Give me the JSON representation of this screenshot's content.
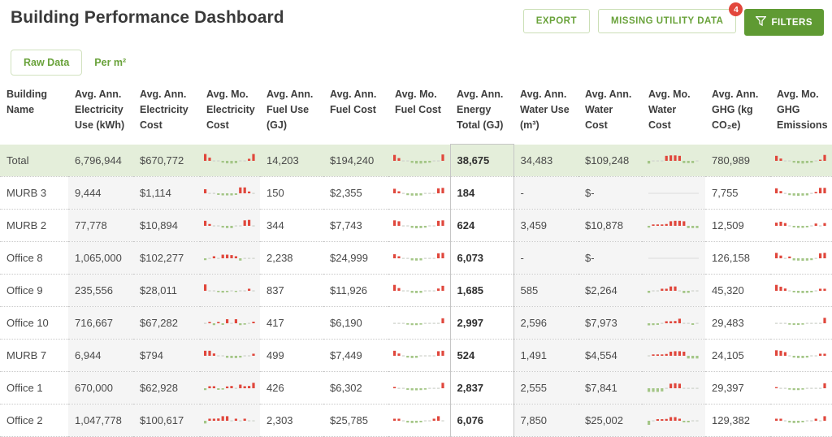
{
  "page": {
    "title": "Building Performance Dashboard"
  },
  "toolbar": {
    "export_label": "EXPORT",
    "missing_label": "MISSING UTILITY DATA",
    "missing_badge": "4",
    "filters_label": "FILTERS"
  },
  "tabs": [
    {
      "label": "Raw Data",
      "active": true
    },
    {
      "label": "Per m²",
      "active": false
    }
  ],
  "colors": {
    "accent_green": "#69a23a",
    "button_solid_green": "#5f9a33",
    "badge_red": "#e2473c",
    "spark_red": "#e0473c",
    "spark_green": "#a4c687",
    "spark_dash": "#d2d6cf",
    "spark_flat_line": "#dcdcdc",
    "total_row_bg": "#e4eeda",
    "column_stripe": "#f5f5f5"
  },
  "table": {
    "columns": [
      {
        "key": "name",
        "label": "Building Name",
        "type": "text",
        "group": "none"
      },
      {
        "key": "elec_use",
        "label": "Avg. Ann. Electricity Use (kWh)",
        "type": "text",
        "group": "elec"
      },
      {
        "key": "elec_cost",
        "label": "Avg. Ann. Electricity Cost",
        "type": "text",
        "group": "elec"
      },
      {
        "key": "elec_spark",
        "label": "Avg. Mo. Electricity Cost",
        "type": "spark",
        "group": "elec"
      },
      {
        "key": "fuel_use",
        "label": "Avg. Ann. Fuel Use (GJ)",
        "type": "text",
        "group": "none"
      },
      {
        "key": "fuel_cost",
        "label": "Avg. Ann. Fuel Cost",
        "type": "text",
        "group": "none"
      },
      {
        "key": "fuel_spark",
        "label": "Avg. Mo. Fuel Cost",
        "type": "spark",
        "group": "none"
      },
      {
        "key": "energy_total",
        "label": "Avg. Ann. Energy Total (GJ)",
        "type": "text",
        "group": "energy"
      },
      {
        "key": "water_use",
        "label": "Avg. Ann. Water Use (m³)",
        "type": "text",
        "group": "water"
      },
      {
        "key": "water_cost",
        "label": "Avg. Ann. Water Cost",
        "type": "text",
        "group": "water"
      },
      {
        "key": "water_spark",
        "label": "Avg. Mo. Water Cost",
        "type": "spark",
        "group": "water"
      },
      {
        "key": "ghg",
        "label": "Avg. Ann. GHG (kg CO₂e)",
        "type": "text",
        "group": "none"
      },
      {
        "key": "ghg_spark",
        "label": "Avg. Mo. GHG Emissions",
        "type": "spark",
        "group": "none"
      }
    ],
    "rows": [
      {
        "name": "Total",
        "total": true,
        "elec_use": "6,796,944",
        "elec_cost": "$670,772",
        "elec_spark": [
          3,
          1.4,
          0.15,
          0.15,
          -0.8,
          -1.1,
          -1.2,
          -1.0,
          0.15,
          0.15,
          0.9,
          3
        ],
        "fuel_use": "14,203",
        "fuel_cost": "$194,240",
        "fuel_spark": [
          2.6,
          1.2,
          0.15,
          0.15,
          -0.9,
          -1.2,
          -1.2,
          -1.0,
          -0.8,
          0.15,
          0.15,
          2.8
        ],
        "energy_total": "38,675",
        "water_use": "34,483",
        "water_cost": "$109,248",
        "water_spark": [
          -1.2,
          0.15,
          0.15,
          0.15,
          2.2,
          2.4,
          2.4,
          2.2,
          -1.0,
          -1.0,
          -1.0,
          0.15
        ],
        "ghg": "780,989",
        "ghg_spark": [
          2.2,
          1.0,
          0.15,
          0.15,
          -0.8,
          -1.1,
          -1.2,
          -1.0,
          -0.8,
          0.15,
          0.5,
          2.6
        ]
      },
      {
        "name": "MURB 3",
        "total": false,
        "elec_use": "9,444",
        "elec_cost": "$1,114",
        "elec_spark": [
          1.8,
          0.15,
          0.15,
          -0.7,
          -0.9,
          -0.9,
          -0.9,
          -0.7,
          2.6,
          2.6,
          0.8,
          0.15
        ],
        "fuel_use": "150",
        "fuel_cost": "$2,355",
        "fuel_spark": [
          2.0,
          0.9,
          0.15,
          -0.8,
          -1.0,
          -1.0,
          -0.9,
          0.15,
          0.15,
          0.15,
          2.2,
          2.4
        ],
        "energy_total": "184",
        "water_use": "-",
        "water_cost": "$-",
        "water_spark": "flat",
        "ghg": "7,755",
        "ghg_spark": [
          2.2,
          1.0,
          0.15,
          -0.8,
          -1.0,
          -1.1,
          -1.0,
          -0.9,
          0.15,
          0.6,
          2.4,
          2.4
        ]
      },
      {
        "name": "MURB 2",
        "total": false,
        "elec_use": "77,778",
        "elec_cost": "$10,894",
        "elec_spark": [
          2.2,
          0.8,
          0.15,
          0.15,
          -0.8,
          -1.0,
          -1.0,
          0.15,
          0.15,
          2.4,
          2.6,
          0.15
        ],
        "fuel_use": "344",
        "fuel_cost": "$7,743",
        "fuel_spark": [
          2.4,
          2.0,
          0.15,
          0.15,
          -0.9,
          -1.1,
          -1.0,
          -0.8,
          0.15,
          0.15,
          2.2,
          2.4
        ],
        "energy_total": "624",
        "water_use": "3,459",
        "water_cost": "$10,878",
        "water_spark": [
          -0.8,
          0.6,
          0.6,
          0.6,
          0.8,
          2.0,
          2.2,
          2.2,
          2.0,
          -1.0,
          -1.0,
          -1.0
        ],
        "ghg": "12,509",
        "ghg_spark": [
          1.4,
          1.8,
          1.2,
          0.15,
          -0.7,
          -0.9,
          -0.9,
          -0.7,
          0.15,
          1.0,
          0.15,
          1.2
        ]
      },
      {
        "name": "Office 8",
        "total": false,
        "elec_use": "1,065,000",
        "elec_cost": "$102,277",
        "elec_spark": [
          -0.8,
          0.15,
          0.9,
          0.15,
          1.6,
          1.6,
          1.4,
          0.9,
          -1.0,
          0.15,
          0.15,
          0.15
        ],
        "fuel_use": "2,238",
        "fuel_cost": "$24,999",
        "fuel_spark": [
          1.8,
          0.9,
          0.15,
          0.15,
          -0.9,
          -1.0,
          -0.9,
          0.15,
          0.15,
          0.15,
          2.2,
          2.4
        ],
        "energy_total": "6,073",
        "water_use": "-",
        "water_cost": "$-",
        "water_spark": "flat",
        "ghg": "126,158",
        "ghg_spark": [
          2.4,
          1.2,
          0.15,
          0.8,
          -0.9,
          -1.0,
          -1.1,
          -1.0,
          -0.8,
          0.15,
          2.2,
          2.4
        ]
      },
      {
        "name": "Office 9",
        "total": false,
        "elec_use": "235,556",
        "elec_cost": "$28,011",
        "elec_spark": [
          2.8,
          0.15,
          0.15,
          -0.6,
          -0.8,
          -0.6,
          0.15,
          -0.5,
          0.15,
          0.15,
          0.9,
          0.15
        ],
        "fuel_use": "837",
        "fuel_cost": "$11,926",
        "fuel_spark": [
          2.6,
          1.2,
          0.15,
          0.15,
          -0.9,
          -1.0,
          -0.9,
          0.15,
          0.15,
          0.15,
          1.0,
          2.2
        ],
        "energy_total": "1,685",
        "water_use": "585",
        "water_cost": "$2,264",
        "water_spark": [
          -0.9,
          0.15,
          0.15,
          0.9,
          0.9,
          1.9,
          1.9,
          0.15,
          -1.0,
          -0.9,
          0.15,
          0.15
        ],
        "ghg": "45,320",
        "ghg_spark": [
          2.6,
          1.8,
          1.0,
          0.15,
          -0.7,
          -0.9,
          -1.0,
          -0.9,
          -0.7,
          0.15,
          0.9,
          0.9
        ]
      },
      {
        "name": "Office 10",
        "total": false,
        "elec_use": "716,667",
        "elec_cost": "$67,282",
        "elec_spark": [
          0.15,
          0.6,
          -0.8,
          0.6,
          -0.7,
          1.8,
          0.15,
          1.8,
          -0.8,
          -0.6,
          0.15,
          0.7
        ],
        "fuel_use": "417",
        "fuel_cost": "$6,190",
        "fuel_spark": [
          0.15,
          0.15,
          0.15,
          -0.6,
          -0.8,
          -0.8,
          -0.6,
          0.15,
          0.15,
          0.15,
          0.15,
          2.2
        ],
        "energy_total": "2,997",
        "water_use": "2,596",
        "water_cost": "$7,973",
        "water_spark": [
          -0.9,
          -0.8,
          -0.7,
          0.15,
          0.9,
          0.9,
          1.0,
          2.0,
          0.15,
          0.15,
          -0.7,
          0.15
        ],
        "ghg": "29,483",
        "ghg_spark": [
          0.15,
          0.15,
          0.15,
          -0.6,
          -0.7,
          -0.7,
          -0.6,
          0.15,
          0.15,
          0.15,
          0.15,
          2.4
        ]
      },
      {
        "name": "MURB 7",
        "total": false,
        "elec_use": "6,944",
        "elec_cost": "$794",
        "elec_spark": [
          2.2,
          2.2,
          1.0,
          0.15,
          0.15,
          -0.9,
          -1.0,
          -1.0,
          -0.8,
          0.15,
          0.15,
          0.9
        ],
        "fuel_use": "499",
        "fuel_cost": "$7,449",
        "fuel_spark": [
          2.2,
          1.0,
          0.15,
          -0.8,
          -1.0,
          -0.9,
          0.15,
          0.15,
          0.15,
          0.15,
          2.0,
          2.2
        ],
        "energy_total": "524",
        "water_use": "1,491",
        "water_cost": "$4,554",
        "water_spark": [
          0.15,
          0.6,
          0.6,
          0.6,
          0.8,
          1.8,
          2.0,
          2.0,
          1.8,
          -1.2,
          -1.2,
          -1.2
        ],
        "ghg": "24,105",
        "ghg_spark": [
          2.4,
          2.2,
          1.6,
          0.15,
          -0.8,
          -1.0,
          -1.0,
          -0.8,
          0.15,
          0.15,
          0.9,
          0.9
        ]
      },
      {
        "name": "Office 1",
        "total": false,
        "elec_use": "670,000",
        "elec_cost": "$62,928",
        "elec_spark": [
          -0.8,
          0.9,
          0.9,
          -0.7,
          -0.6,
          0.8,
          1.0,
          0.15,
          1.6,
          0.9,
          1.0,
          2.4
        ],
        "fuel_use": "426",
        "fuel_cost": "$6,302",
        "fuel_spark": [
          0.6,
          0.15,
          0.15,
          -0.7,
          -0.9,
          -0.9,
          -0.8,
          -0.6,
          0.15,
          0.15,
          0.15,
          2.4
        ],
        "energy_total": "2,837",
        "water_use": "2,555",
        "water_cost": "$7,841",
        "water_spark": [
          -1.6,
          -1.6,
          -1.6,
          -1.4,
          0.15,
          2.0,
          2.2,
          2.0,
          0.15,
          0.15,
          0.15,
          0.15
        ],
        "ghg": "29,397",
        "ghg_spark": [
          0.5,
          0.15,
          0.15,
          -0.6,
          -0.8,
          -0.8,
          -0.6,
          0.15,
          0.15,
          0.15,
          0.15,
          2.2
        ]
      },
      {
        "name": "Office 2",
        "total": false,
        "elec_use": "1,047,778",
        "elec_cost": "$100,617",
        "elec_spark": [
          -1.2,
          0.9,
          0.9,
          1.0,
          2.0,
          2.0,
          0.15,
          0.9,
          0.15,
          0.9,
          0.15,
          0.15
        ],
        "fuel_use": "2,303",
        "fuel_cost": "$25,785",
        "fuel_spark": [
          0.9,
          0.9,
          0.15,
          -0.8,
          -1.0,
          -0.9,
          -0.7,
          0.15,
          0.15,
          0.9,
          2.0,
          0.15
        ],
        "energy_total": "6,076",
        "water_use": "7,850",
        "water_cost": "$25,002",
        "water_spark": [
          -1.8,
          0.15,
          0.7,
          0.7,
          0.8,
          1.6,
          1.6,
          0.9,
          -0.7,
          -0.7,
          0.15,
          0.15
        ],
        "ghg": "129,382",
        "ghg_spark": [
          0.9,
          0.9,
          0.15,
          -0.8,
          -1.0,
          -0.9,
          -0.7,
          0.15,
          0.15,
          0.9,
          0.15,
          2.0
        ]
      }
    ]
  }
}
